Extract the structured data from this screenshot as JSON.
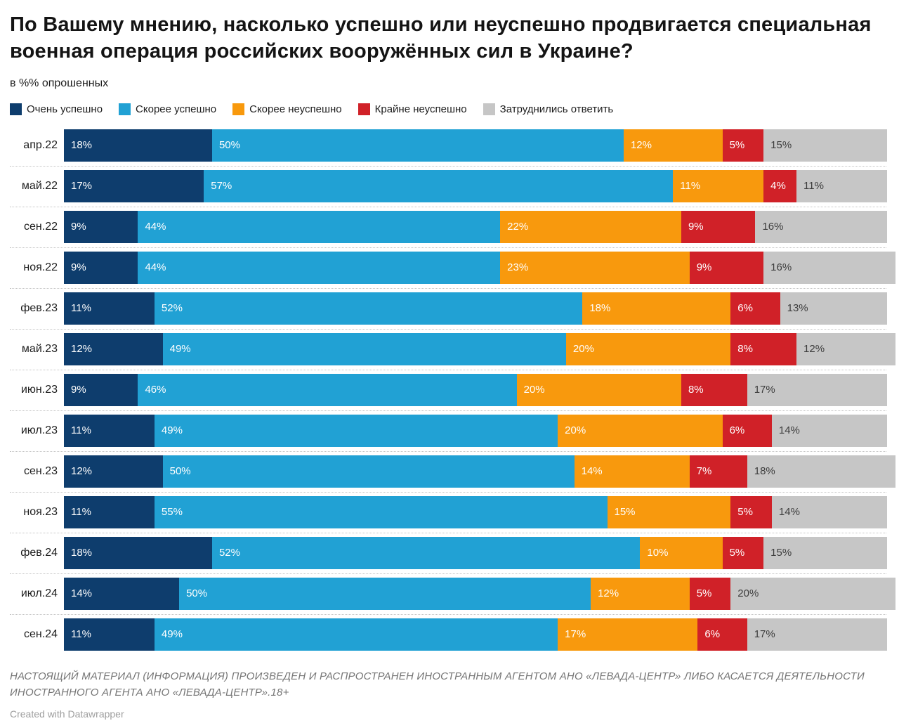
{
  "header": {
    "title": "По Вашему мнению, насколько успешно или неуспешно продвигается специальная военная операция российских вооружённых сил в Украине?",
    "subtitle": "в %% опрошенных"
  },
  "legend": [
    {
      "label": "Очень успешно",
      "color": "#0e3d6d"
    },
    {
      "label": "Скорее успешно",
      "color": "#21a1d4"
    },
    {
      "label": "Скорее неуспешно",
      "color": "#f8990d"
    },
    {
      "label": "Крайне неуспешно",
      "color": "#d02128"
    },
    {
      "label": "Затруднились ответить",
      "color": "#c6c6c6"
    }
  ],
  "chart_data": {
    "type": "bar",
    "variant": "stacked-horizontal",
    "unit": "%",
    "value_suffix": "%",
    "xlim": [
      0,
      100
    ],
    "grid": false,
    "legend_position": "top",
    "categories": [
      "апр.22",
      "май.22",
      "сен.22",
      "ноя.22",
      "фев.23",
      "май.23",
      "июн.23",
      "июл.23",
      "сен.23",
      "ноя.23",
      "фев.24",
      "июл.24",
      "сен.24"
    ],
    "series": [
      {
        "name": "Очень успешно",
        "color": "#0e3d6d",
        "label_style": "light",
        "values": [
          18,
          17,
          9,
          9,
          11,
          12,
          9,
          11,
          12,
          11,
          18,
          14,
          11
        ]
      },
      {
        "name": "Скорее успешно",
        "color": "#21a1d4",
        "label_style": "light",
        "values": [
          50,
          57,
          44,
          44,
          52,
          49,
          46,
          49,
          50,
          55,
          52,
          50,
          49
        ]
      },
      {
        "name": "Скорее неуспешно",
        "color": "#f8990d",
        "label_style": "light",
        "values": [
          12,
          11,
          22,
          23,
          18,
          20,
          20,
          20,
          14,
          15,
          10,
          12,
          17
        ]
      },
      {
        "name": "Крайне неуспешно",
        "color": "#d02128",
        "label_style": "light",
        "values": [
          5,
          4,
          9,
          9,
          6,
          8,
          8,
          6,
          7,
          5,
          5,
          5,
          6
        ]
      },
      {
        "name": "Затруднились ответить",
        "color": "#c6c6c6",
        "label_style": "dark",
        "values": [
          15,
          11,
          16,
          16,
          13,
          12,
          17,
          14,
          18,
          14,
          15,
          20,
          17
        ]
      }
    ]
  },
  "footer": {
    "disclaimer": "НАСТОЯЩИЙ МАТЕРИАЛ (ИНФОРМАЦИЯ) ПРОИЗВЕДЕН И РАСПРОСТРАНЕН ИНОСТРАННЫМ АГЕНТОМ АНО «ЛЕВАДА-ЦЕНТР» ЛИБО КАСАЕТСЯ ДЕЯТЕЛЬНОСТИ ИНОСТРАННОГО АГЕНТА АНО «ЛЕВАДА-ЦЕНТР».18+",
    "attribution": "Created with Datawrapper"
  }
}
